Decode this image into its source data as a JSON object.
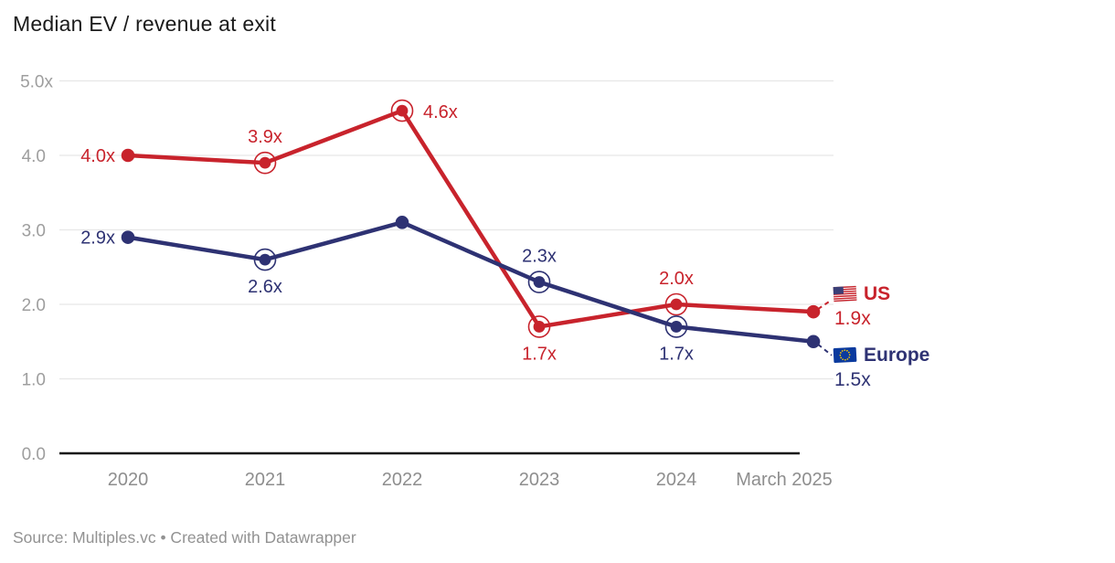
{
  "title": "Median EV / revenue at exit",
  "footer": {
    "text": "Source: Multiples.vc • Created with Datawrapper"
  },
  "colors": {
    "us": "#c8232c",
    "europe": "#2e3273",
    "grid": "#e7e7e7",
    "axis": "#111111",
    "y_tick_text": "#9e9e9e",
    "x_tick_text": "#8e8e8e"
  },
  "legend": {
    "us": {
      "name": "US",
      "value": "1.9x",
      "flag": "us-flag-icon"
    },
    "europe": {
      "name": "Europe",
      "value": "1.5x",
      "flag": "eu-flag-icon"
    }
  },
  "chart_data": {
    "type": "line",
    "title": "Median EV / revenue at exit",
    "categories": [
      "2020",
      "2021",
      "2022",
      "2023",
      "2024",
      "March 2025"
    ],
    "ylim": [
      0,
      5
    ],
    "grid": true,
    "legend_position": "right-of-line-end",
    "y_ticks": [
      {
        "label": "5.0x",
        "value": 5
      },
      {
        "label": "4.0",
        "value": 4
      },
      {
        "label": "3.0",
        "value": 3
      },
      {
        "label": "2.0",
        "value": 2
      },
      {
        "label": "1.0",
        "value": 1
      },
      {
        "label": "0.0",
        "value": 0
      }
    ],
    "series": [
      {
        "name": "US",
        "key": "us",
        "color": "#c8232c",
        "values": [
          4.0,
          3.9,
          4.6,
          1.7,
          2.0,
          1.9
        ],
        "point_labels": [
          "4.0x",
          "3.9x",
          "4.6x",
          "1.7x",
          "2.0x",
          ""
        ],
        "label_positions": [
          "left",
          "above",
          "right",
          "below",
          "above",
          "none"
        ],
        "ring_markers": [
          false,
          true,
          true,
          true,
          true,
          false
        ],
        "end_value": "1.9x"
      },
      {
        "name": "Europe",
        "key": "europe",
        "color": "#2e3273",
        "values": [
          2.9,
          2.6,
          3.1,
          2.3,
          1.7,
          1.5
        ],
        "point_labels": [
          "2.9x",
          "2.6x",
          "",
          "2.3x",
          "1.7x",
          ""
        ],
        "label_positions": [
          "left",
          "below",
          "none",
          "above",
          "below",
          "none"
        ],
        "ring_markers": [
          false,
          true,
          false,
          true,
          true,
          false
        ],
        "end_value": "1.5x"
      }
    ]
  }
}
